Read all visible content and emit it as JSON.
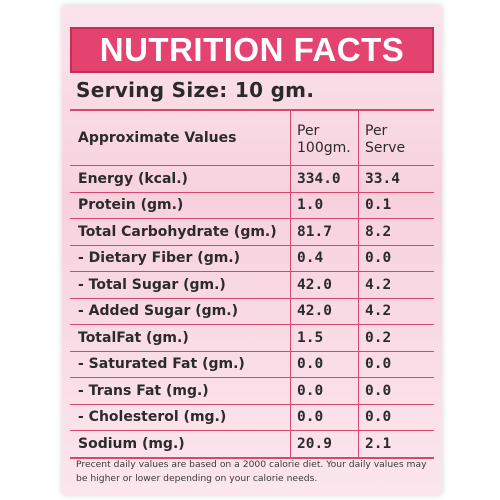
{
  "title": "NUTRITION FACTS",
  "serving": "Serving Size: 10 gm.",
  "headers": {
    "label": "Approximate Values",
    "per100_line1": "Per",
    "per100_line2": "100gm.",
    "perServe_line1": "Per",
    "perServe_line2": "Serve"
  },
  "rows": [
    {
      "label": "Energy (kcal.)",
      "per100": "334.0",
      "perServe": "33.4"
    },
    {
      "label": "Protein (gm.)",
      "per100": "1.0",
      "perServe": "0.1"
    },
    {
      "label": "Total Carbohydrate (gm.)",
      "per100": "81.7",
      "perServe": "8.2"
    },
    {
      "label": "- Dietary Fiber (gm.)",
      "per100": "0.4",
      "perServe": "0.0"
    },
    {
      "label": "- Total Sugar (gm.)",
      "per100": "42.0",
      "perServe": "4.2"
    },
    {
      "label": "- Added Sugar (gm.)",
      "per100": "42.0",
      "perServe": "4.2"
    },
    {
      "label": "TotalFat (gm.)",
      "per100": "1.5",
      "perServe": "0.2"
    },
    {
      "label": "- Saturated Fat (gm.)",
      "per100": "0.0",
      "perServe": "0.0"
    },
    {
      "label": "- Trans Fat (mg.)",
      "per100": "0.0",
      "perServe": "0.0"
    },
    {
      "label": "- Cholesterol (mg.)",
      "per100": "0.0",
      "perServe": "0.0"
    },
    {
      "label": "Sodium (mg.)",
      "per100": "20.9",
      "perServe": "2.1"
    }
  ],
  "footnote": "Precent daily values are based on a 2000 calorie diet. Your daily  values may be higher or lower depending on your calorie needs.",
  "colors": {
    "accent": "#e5436f",
    "background": "#f9dbe5",
    "rule": "#d6486f"
  }
}
